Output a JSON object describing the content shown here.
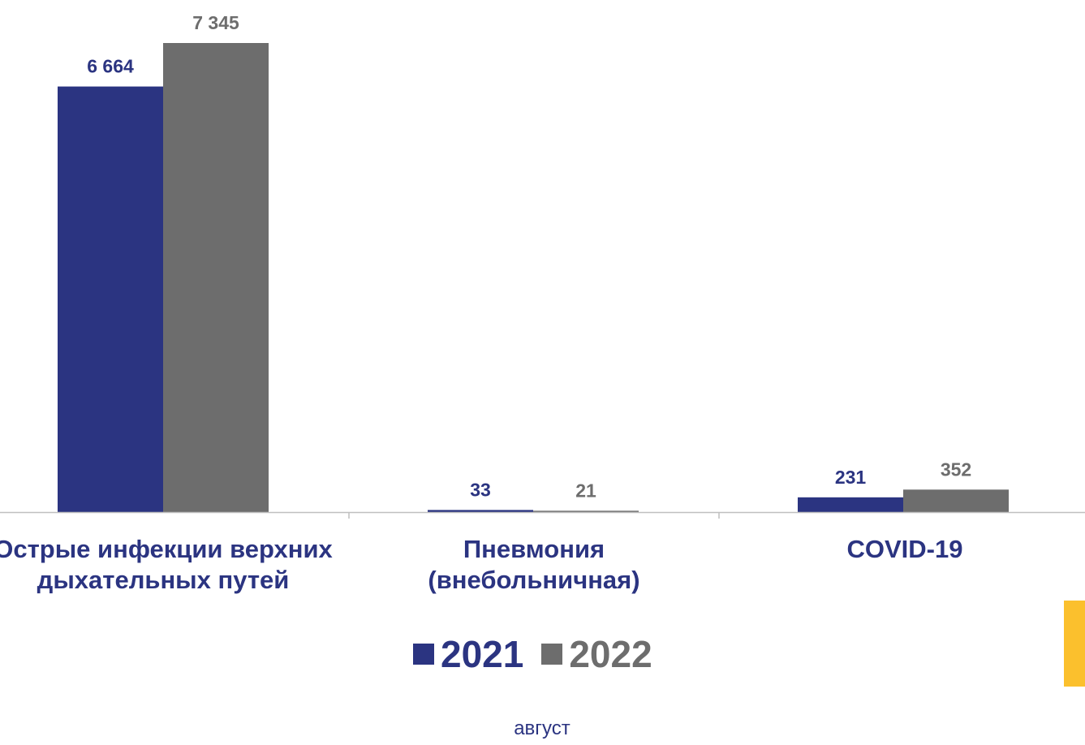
{
  "chart_data": {
    "type": "bar",
    "categories": [
      "Острые инфекции верхних дыхательных путей",
      "Пневмония (внебольничная)",
      "COVID-19"
    ],
    "series": [
      {
        "name": "2021",
        "values": [
          6664,
          33,
          231
        ],
        "labels": [
          "6 664",
          "33",
          "231"
        ]
      },
      {
        "name": "2022",
        "values": [
          7345,
          21,
          352
        ],
        "labels": [
          "7 345",
          "21",
          "352"
        ]
      }
    ],
    "ylim": [
      0,
      7345
    ],
    "grid": false,
    "legend": "bottom",
    "footnote": "август"
  },
  "colors": {
    "series_2021": "#2b3481",
    "series_2022": "#6d6d6d",
    "axis": "#bfbfbf",
    "accent": "#fbc02d"
  }
}
